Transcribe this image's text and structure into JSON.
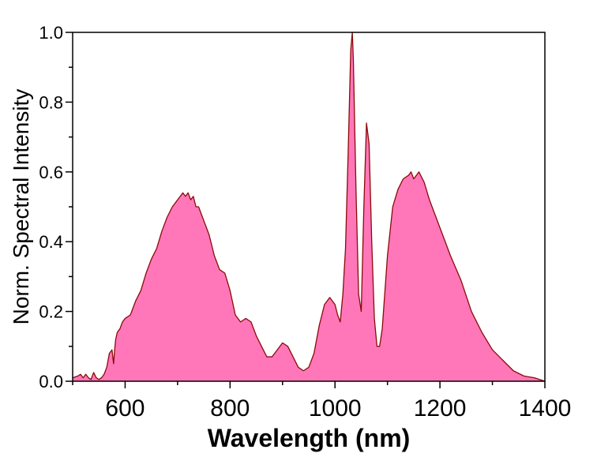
{
  "chart_data": {
    "type": "area",
    "title": "",
    "xlabel": "Wavelength (nm)",
    "ylabel": "Norm. Spectral Intensity",
    "xlim": [
      500,
      1400
    ],
    "ylim": [
      0,
      1.0
    ],
    "xticks": [
      600,
      800,
      1000,
      1200,
      1400
    ],
    "xtick_labels": [
      "600",
      "800",
      "1000",
      "1200",
      "1400"
    ],
    "yticks": [
      0.0,
      0.2,
      0.4,
      0.6,
      0.8,
      1.0
    ],
    "ytick_labels": [
      "0.0",
      "0.2",
      "0.4",
      "0.6",
      "0.8",
      "1.0"
    ],
    "grid": false,
    "legend": "none",
    "fill_color": "#ff77b8",
    "line_color": "#8b0a0a",
    "series": [
      {
        "x": [
          500,
          510,
          515,
          520,
          525,
          530,
          535,
          540,
          545,
          550,
          555,
          560,
          565,
          570,
          575,
          578,
          580,
          582,
          585,
          590,
          595,
          600,
          610,
          620,
          630,
          640,
          650,
          660,
          670,
          680,
          690,
          700,
          705,
          710,
          715,
          720,
          725,
          730,
          735,
          740,
          745,
          750,
          755,
          760,
          770,
          780,
          790,
          800,
          810,
          820,
          830,
          840,
          850,
          860,
          870,
          880,
          890,
          900,
          910,
          920,
          930,
          940,
          950,
          960,
          970,
          980,
          990,
          1000,
          1005,
          1010,
          1015,
          1020,
          1025,
          1030,
          1033,
          1035,
          1040,
          1045,
          1050,
          1055,
          1060,
          1065,
          1070,
          1075,
          1080,
          1085,
          1090,
          1100,
          1110,
          1120,
          1130,
          1140,
          1145,
          1150,
          1155,
          1160,
          1170,
          1180,
          1190,
          1200,
          1220,
          1240,
          1260,
          1280,
          1300,
          1320,
          1340,
          1360,
          1380,
          1400
        ],
        "y": [
          0.01,
          0.015,
          0.02,
          0.01,
          0.02,
          0.01,
          0.005,
          0.025,
          0.01,
          0.005,
          0.01,
          0.02,
          0.04,
          0.08,
          0.09,
          0.05,
          0.09,
          0.12,
          0.14,
          0.15,
          0.17,
          0.18,
          0.19,
          0.23,
          0.26,
          0.31,
          0.35,
          0.38,
          0.43,
          0.47,
          0.5,
          0.52,
          0.53,
          0.54,
          0.53,
          0.54,
          0.52,
          0.53,
          0.5,
          0.5,
          0.48,
          0.46,
          0.44,
          0.42,
          0.36,
          0.32,
          0.31,
          0.26,
          0.19,
          0.17,
          0.18,
          0.17,
          0.13,
          0.1,
          0.07,
          0.07,
          0.09,
          0.11,
          0.1,
          0.07,
          0.04,
          0.03,
          0.04,
          0.08,
          0.16,
          0.22,
          0.24,
          0.22,
          0.19,
          0.17,
          0.25,
          0.38,
          0.65,
          0.95,
          1.0,
          0.92,
          0.55,
          0.25,
          0.2,
          0.5,
          0.74,
          0.68,
          0.4,
          0.18,
          0.1,
          0.1,
          0.15,
          0.36,
          0.5,
          0.55,
          0.58,
          0.59,
          0.6,
          0.58,
          0.59,
          0.6,
          0.57,
          0.52,
          0.48,
          0.44,
          0.36,
          0.29,
          0.2,
          0.14,
          0.09,
          0.06,
          0.03,
          0.015,
          0.01,
          0.0
        ]
      }
    ]
  }
}
